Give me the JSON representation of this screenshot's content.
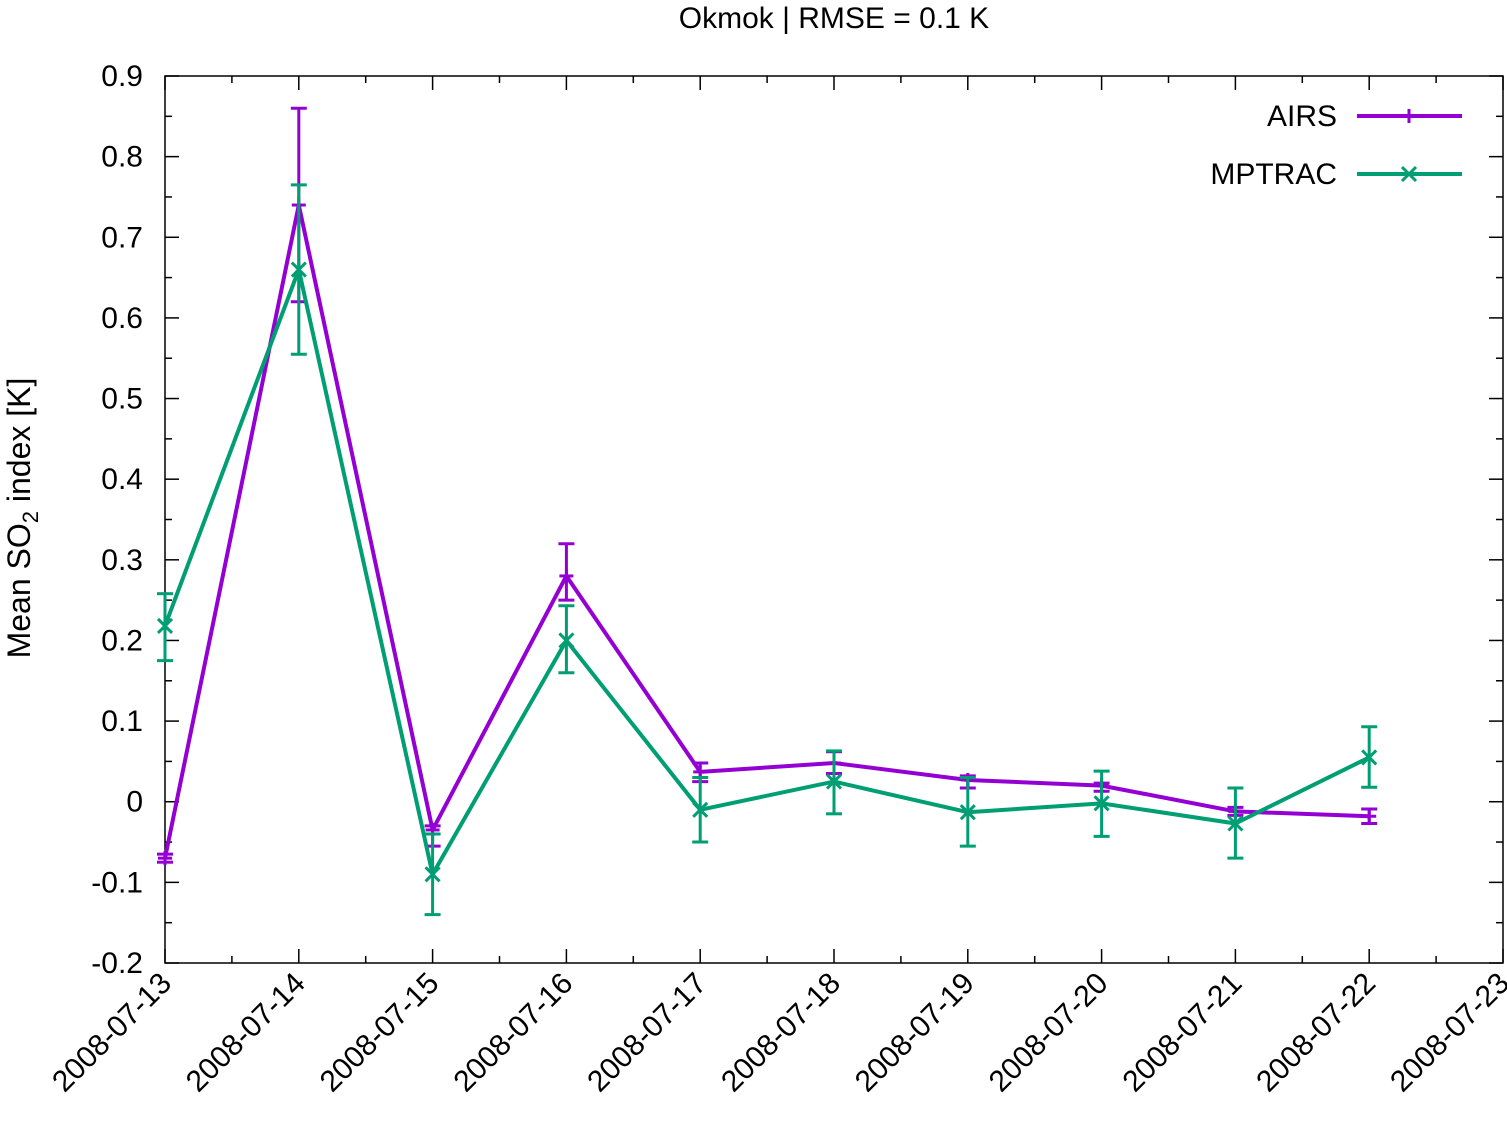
{
  "chart_data": {
    "type": "line",
    "title": "Okmok | RMSE = 0.1 K",
    "ylabel_prefix": "Mean SO",
    "ylabel_sub": "2",
    "ylabel_suffix": " index [K]",
    "xlabel": "",
    "ylim": [
      -0.2,
      0.9
    ],
    "yticks": [
      -0.2,
      -0.1,
      0,
      0.1,
      0.2,
      0.3,
      0.4,
      0.5,
      0.6,
      0.7,
      0.8,
      0.9
    ],
    "ytick_labels": [
      "-0.2",
      "-0.1",
      "0",
      "0.1",
      "0.2",
      "0.3",
      "0.4",
      "0.5",
      "0.6",
      "0.7",
      "0.8",
      "0.9"
    ],
    "xlim": [
      "2008-07-13",
      "2008-07-23"
    ],
    "xticks": [
      "2008-07-13",
      "2008-07-14",
      "2008-07-15",
      "2008-07-16",
      "2008-07-17",
      "2008-07-18",
      "2008-07-19",
      "2008-07-20",
      "2008-07-21",
      "2008-07-22",
      "2008-07-23"
    ],
    "legend_position": "top-right",
    "grid": false,
    "series": [
      {
        "name": "AIRS",
        "color": "#9400d3",
        "marker": "plus",
        "x": [
          "2008-07-13",
          "2008-07-14",
          "2008-07-15",
          "2008-07-16",
          "2008-07-17",
          "2008-07-18",
          "2008-07-19",
          "2008-07-20",
          "2008-07-21",
          "2008-07-22"
        ],
        "y": [
          -0.07,
          0.74,
          -0.035,
          0.28,
          0.037,
          0.048,
          0.027,
          0.02,
          -0.012,
          -0.018
        ],
        "err_low": [
          -0.075,
          0.62,
          -0.055,
          0.25,
          0.025,
          0.035,
          0.017,
          0.013,
          -0.017,
          -0.027
        ],
        "err_high": [
          -0.065,
          0.86,
          -0.03,
          0.32,
          0.048,
          0.062,
          0.032,
          0.023,
          -0.007,
          -0.009
        ]
      },
      {
        "name": "MPTRAC",
        "color": "#009e73",
        "marker": "cross",
        "x": [
          "2008-07-13",
          "2008-07-14",
          "2008-07-15",
          "2008-07-16",
          "2008-07-17",
          "2008-07-18",
          "2008-07-19",
          "2008-07-20",
          "2008-07-21",
          "2008-07-22"
        ],
        "y": [
          0.218,
          0.66,
          -0.09,
          0.2,
          -0.01,
          0.025,
          -0.013,
          -0.002,
          -0.027,
          0.055
        ],
        "err_low": [
          0.175,
          0.555,
          -0.14,
          0.16,
          -0.05,
          -0.015,
          -0.055,
          -0.043,
          -0.07,
          0.018
        ],
        "err_high": [
          0.258,
          0.765,
          -0.04,
          0.243,
          0.03,
          0.063,
          0.03,
          0.038,
          0.017,
          0.093
        ]
      }
    ]
  }
}
